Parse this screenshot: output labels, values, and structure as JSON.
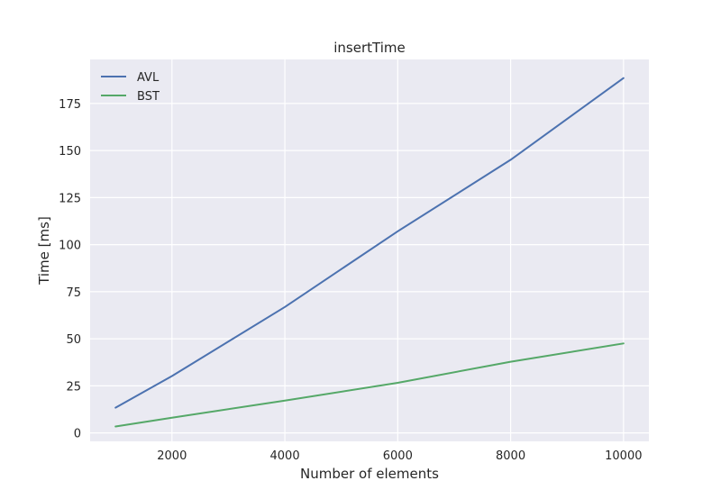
{
  "chart_data": {
    "type": "line",
    "title": "insertTime",
    "xlabel": "Number of elements",
    "ylabel": "Time [ms]",
    "xlim": [
      550,
      10450
    ],
    "ylim": [
      -4.5,
      198.4
    ],
    "xticks": [
      2000,
      4000,
      6000,
      8000,
      10000
    ],
    "yticks": [
      0,
      25,
      50,
      75,
      100,
      125,
      150,
      175
    ],
    "grid": true,
    "legend_position": "top-left",
    "x": [
      1000,
      2000,
      4000,
      6000,
      8000,
      10000
    ],
    "series": [
      {
        "name": "AVL",
        "color": "#4c72b0",
        "values": [
          13.4,
          30.2,
          66.9,
          107.1,
          145.1,
          188.5
        ]
      },
      {
        "name": "BST",
        "color": "#55a868",
        "values": [
          3.4,
          8.1,
          17.2,
          26.6,
          37.8,
          47.5
        ]
      }
    ]
  },
  "style": {
    "plot_background": "#eaeaf2",
    "grid_color": "#ffffff"
  }
}
